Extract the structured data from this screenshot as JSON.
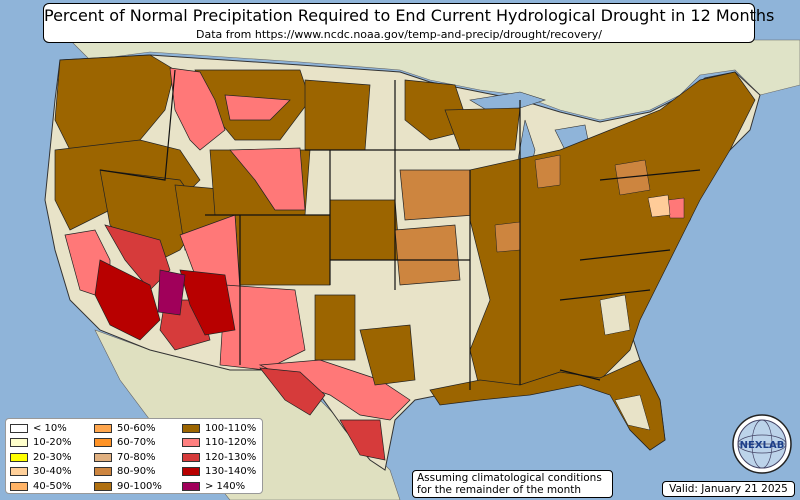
{
  "title": "Percent of Normal Precipitation Required to End Current Hydrological Drought in 12 Months",
  "subtitle": "Data from https://www.ncdc.noaa.gov/temp-and-precip/drought/recovery/",
  "note": {
    "line1": "Assuming climatological conditions",
    "line2": "for the remainder of the month"
  },
  "valid": "Valid: January 21 2025",
  "logo": {
    "text": "NEXLAB",
    "icon": "globe-icon"
  },
  "colors": {
    "ocean": "#8fb4d9",
    "land": "#e8e3c8",
    "c100_110": "#9c6500",
    "c110_120": "#ff7878",
    "c120_130": "#d63b3b",
    "c130_140": "#b80000",
    "c140": "#a0005a",
    "c80_90": "#cd853f",
    "c70_80": "#e0a070",
    "c40_50": "#ffcc99"
  },
  "legend": {
    "items": [
      {
        "label": "< 10%",
        "color": "#ffffff"
      },
      {
        "label": "10-20%",
        "color": "#ffffcc"
      },
      {
        "label": "20-30%",
        "color": "#ffff00"
      },
      {
        "label": "30-40%",
        "color": "#ffd09a"
      },
      {
        "label": "40-50%",
        "color": "#ffb366"
      },
      {
        "label": "50-60%",
        "color": "#ffa64d"
      },
      {
        "label": "60-70%",
        "color": "#ff9326"
      },
      {
        "label": "70-80%",
        "color": "#e0b080"
      },
      {
        "label": "80-90%",
        "color": "#cd853f"
      },
      {
        "label": "90-100%",
        "color": "#b07010"
      },
      {
        "label": "100-110%",
        "color": "#9c6500"
      },
      {
        "label": "110-120%",
        "color": "#ff8080"
      },
      {
        "label": "120-130%",
        "color": "#d63b3b"
      },
      {
        "label": "130-140%",
        "color": "#b80000"
      },
      {
        "label": "> 140%",
        "color": "#a0005a"
      }
    ]
  }
}
